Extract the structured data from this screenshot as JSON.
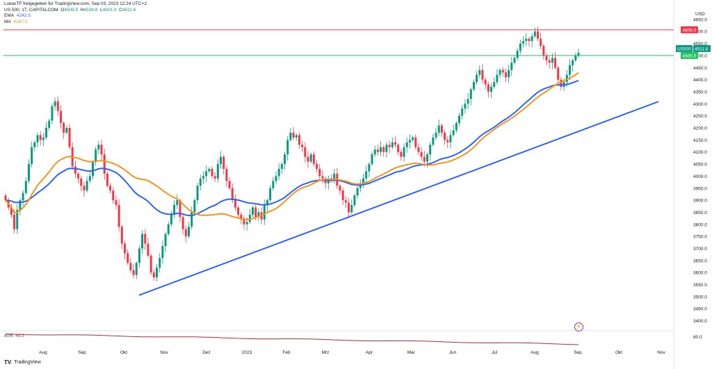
{
  "header": {
    "attribution": "LukasTF freigegeben für TradingView.com, Sep 03, 2023 12:24 UTC+2",
    "symbol": "US 500, 1T, CAPITALCOM",
    "o_label": "O",
    "o": "4509.5",
    "h_label": "H",
    "h": "4539.8",
    "l_label": "L",
    "l": "4501.0",
    "c_label": "C",
    "c": "4511.6",
    "ema_label": "EMA",
    "ema": "4242.3",
    "ma_label": "MA",
    "ma": "4167.0"
  },
  "currency": "USD",
  "atr": {
    "label": "ATR",
    "value": "49.3",
    "axis_label": "80.0"
  },
  "brand": {
    "logo": "TV",
    "name": "TradingView"
  },
  "chart_data": {
    "type": "candlestick",
    "x_ticks": [
      "Aug",
      "Sep",
      "Okt",
      "Nov",
      "Dez",
      "2023",
      "Feb",
      "Mrz",
      "Apr",
      "Mai",
      "Jun",
      "Jul",
      "Aug",
      "Sep",
      "Okt",
      "Nov"
    ],
    "y_ticks": [
      4650,
      4600,
      4550,
      4500,
      4450,
      4400,
      4350,
      4300,
      4250,
      4200,
      4150,
      4100,
      4050,
      4000,
      3950,
      3900,
      3850,
      3800,
      3750,
      3700,
      3650,
      3600,
      3550,
      3500,
      3450,
      3400
    ],
    "ylim": [
      3370,
      4690
    ],
    "horizontal_lines": [
      {
        "name": "resistance",
        "value": 4606.9,
        "label": "4606.9",
        "color": "#f23645"
      },
      {
        "name": "support",
        "value": 4500.0,
        "label": "4500.0",
        "color": "#22c55e"
      }
    ],
    "last_price": {
      "symbol": "US500",
      "value": 4511.6,
      "label": "4511.6",
      "color": "#089981"
    },
    "closes": [
      3900,
      3870,
      3840,
      3780,
      3860,
      3900,
      3930,
      3980,
      4050,
      4120,
      4140,
      4170,
      4150,
      4160,
      4200,
      4230,
      4290,
      4310,
      4270,
      4220,
      4180,
      4200,
      4120,
      4040,
      4010,
      3990,
      3960,
      3940,
      3980,
      4000,
      4060,
      4110,
      4130,
      4090,
      4010,
      3960,
      3940,
      3900,
      3880,
      3790,
      3720,
      3680,
      3640,
      3610,
      3590,
      3640,
      3700,
      3760,
      3720,
      3670,
      3600,
      3580,
      3620,
      3660,
      3710,
      3760,
      3800,
      3840,
      3880,
      3900,
      3830,
      3780,
      3750,
      3790,
      3850,
      3900,
      3960,
      3990,
      4000,
      4020,
      4030,
      4000,
      3990,
      4050,
      4080,
      4030,
      3980,
      3950,
      3900,
      3870,
      3840,
      3820,
      3800,
      3810,
      3840,
      3870,
      3830,
      3850,
      3820,
      3880,
      3900,
      3950,
      3980,
      4000,
      4030,
      4050,
      4090,
      4150,
      4180,
      4160,
      4170,
      4130,
      4120,
      4080,
      4060,
      4090,
      4050,
      4030,
      4000,
      3990,
      3970,
      3990,
      3980,
      4010,
      3960,
      3940,
      3900,
      3890,
      3850,
      3880,
      3920,
      3950,
      3970,
      3990,
      4020,
      4050,
      4090,
      4110,
      4100,
      4120,
      4100,
      4130,
      4120,
      4140,
      4130,
      4100,
      4080,
      4120,
      4140,
      4150,
      4160,
      4120,
      4100,
      4080,
      4060,
      4090,
      4130,
      4160,
      4180,
      4210,
      4180,
      4150,
      4140,
      4170,
      4190,
      4220,
      4250,
      4280,
      4300,
      4320,
      4360,
      4390,
      4420,
      4440,
      4400,
      4380,
      4350,
      4370,
      4390,
      4420,
      4440,
      4430,
      4410,
      4440,
      4470,
      4490,
      4520,
      4550,
      4560,
      4570,
      4560,
      4580,
      4600,
      4570,
      4540,
      4500,
      4480,
      4470,
      4490,
      4450,
      4400,
      4370,
      4390,
      4420,
      4460,
      4480,
      4500,
      4511.6
    ],
    "series": [
      {
        "name": "EMA",
        "color": "#2962ff",
        "value": 4242.3
      },
      {
        "name": "MA",
        "color": "#f7931a",
        "value": 4167.0
      }
    ],
    "trendlines": [
      {
        "from": [
          "Okt",
          3506
        ],
        "to": [
          "Sep",
          4309
        ],
        "color": "#2962ff"
      }
    ],
    "atr_series": {
      "name": "ATR",
      "value": 49.3,
      "color": "#b22833"
    }
  }
}
